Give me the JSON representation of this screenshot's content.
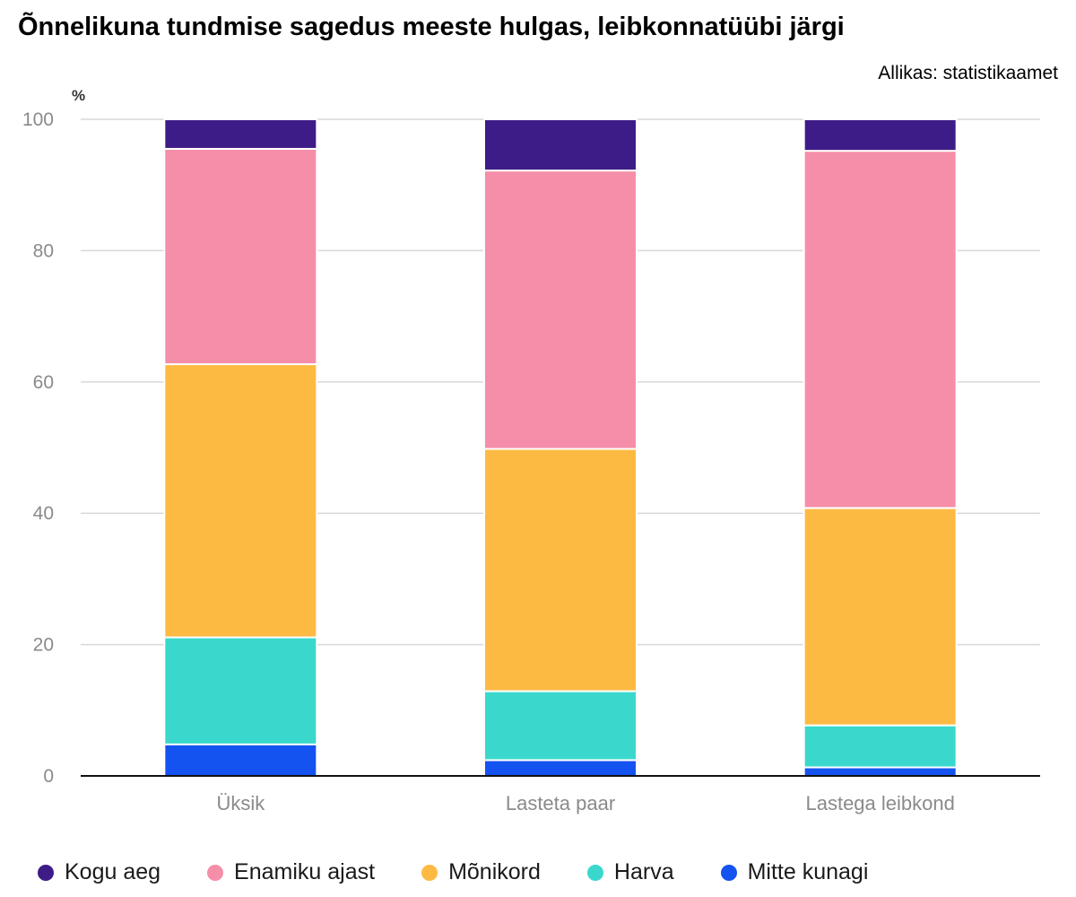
{
  "header": {
    "title": "Õnnelikuna tundmise sagedus meeste hulgas, leibkonnatüübi järgi",
    "source": "Allikas: statistikaamet"
  },
  "chart_data": {
    "type": "bar",
    "stacked": true,
    "ylabel": "%",
    "ylim": [
      0,
      100
    ],
    "yticks": [
      0,
      20,
      40,
      60,
      80,
      100
    ],
    "categories": [
      "Üksik",
      "Lasteta paar",
      "Lastega leibkond"
    ],
    "series": [
      {
        "name": "Mitte kunagi",
        "color": "#1553f0",
        "values": [
          4.8,
          2.4,
          1.3
        ]
      },
      {
        "name": "Harva",
        "color": "#3ad8cc",
        "values": [
          16.3,
          10.5,
          6.4
        ]
      },
      {
        "name": "Mõnikord",
        "color": "#fdba43",
        "values": [
          41.6,
          36.9,
          33.1
        ]
      },
      {
        "name": "Enamiku ajast",
        "color": "#f58ea9",
        "values": [
          32.8,
          42.4,
          54.4
        ]
      },
      {
        "name": "Kogu aeg",
        "color": "#3e1c87",
        "values": [
          4.5,
          7.8,
          4.8
        ]
      }
    ],
    "legend_order": [
      "Kogu aeg",
      "Enamiku ajast",
      "Mõnikord",
      "Harva",
      "Mitte kunagi"
    ],
    "grid": true,
    "legend_position": "bottom"
  }
}
